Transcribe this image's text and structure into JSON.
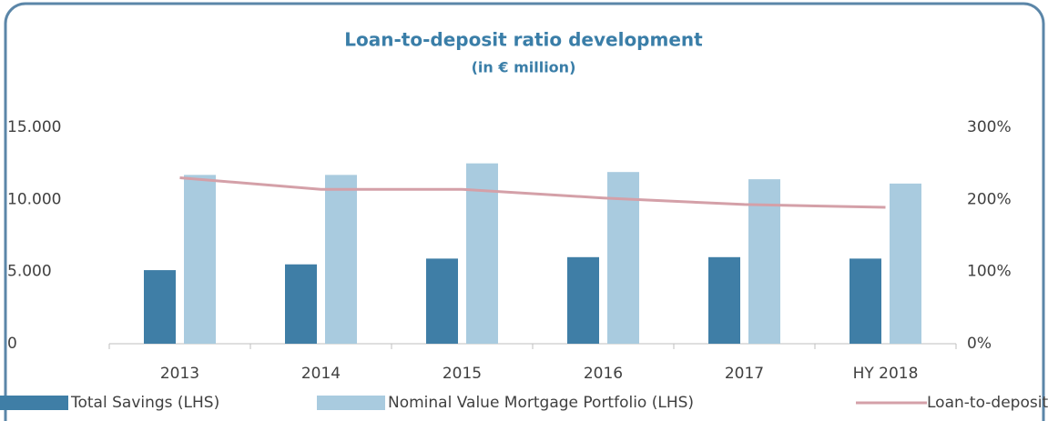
{
  "chart_data": {
    "type": "bar_line",
    "title": "Loan-to-deposit ratio development",
    "subtitle": "(in € million)",
    "categories": [
      "2013",
      "2014",
      "2015",
      "2016",
      "2017",
      "HY 2018"
    ],
    "series": [
      {
        "name": "Total Savings (LHS)",
        "color": "#3f7ea6",
        "type": "bar",
        "values": [
          5100,
          5500,
          5900,
          6000,
          6000,
          5900
        ]
      },
      {
        "name": "Nominal Value Mortgage Portfolio (LHS)",
        "color": "#a9cbdf",
        "type": "bar",
        "values": [
          11700,
          11700,
          12500,
          11900,
          11400,
          11100
        ]
      },
      {
        "name": "Loan-to-deposit ratio (RHS)",
        "color": "#d4a0a8",
        "type": "line",
        "axis": "y2",
        "values": [
          230,
          214,
          214,
          202,
          193,
          189
        ]
      }
    ],
    "ylim": [
      0,
      15000
    ],
    "yticks": [
      0,
      {
        "value": 5000,
        "label": "5.000"
      },
      {
        "value": 10000,
        "label": "10.000"
      },
      {
        "value": 15000,
        "label": "15.000"
      }
    ],
    "y2lim": [
      0,
      300
    ],
    "y2ticks": [
      {
        "value": 0,
        "label": "0%"
      },
      {
        "value": 100,
        "label": "100%"
      },
      {
        "value": 200,
        "label": "200%"
      },
      {
        "value": 300,
        "label": "300%"
      }
    ],
    "grid": false,
    "legend": "bottom"
  }
}
